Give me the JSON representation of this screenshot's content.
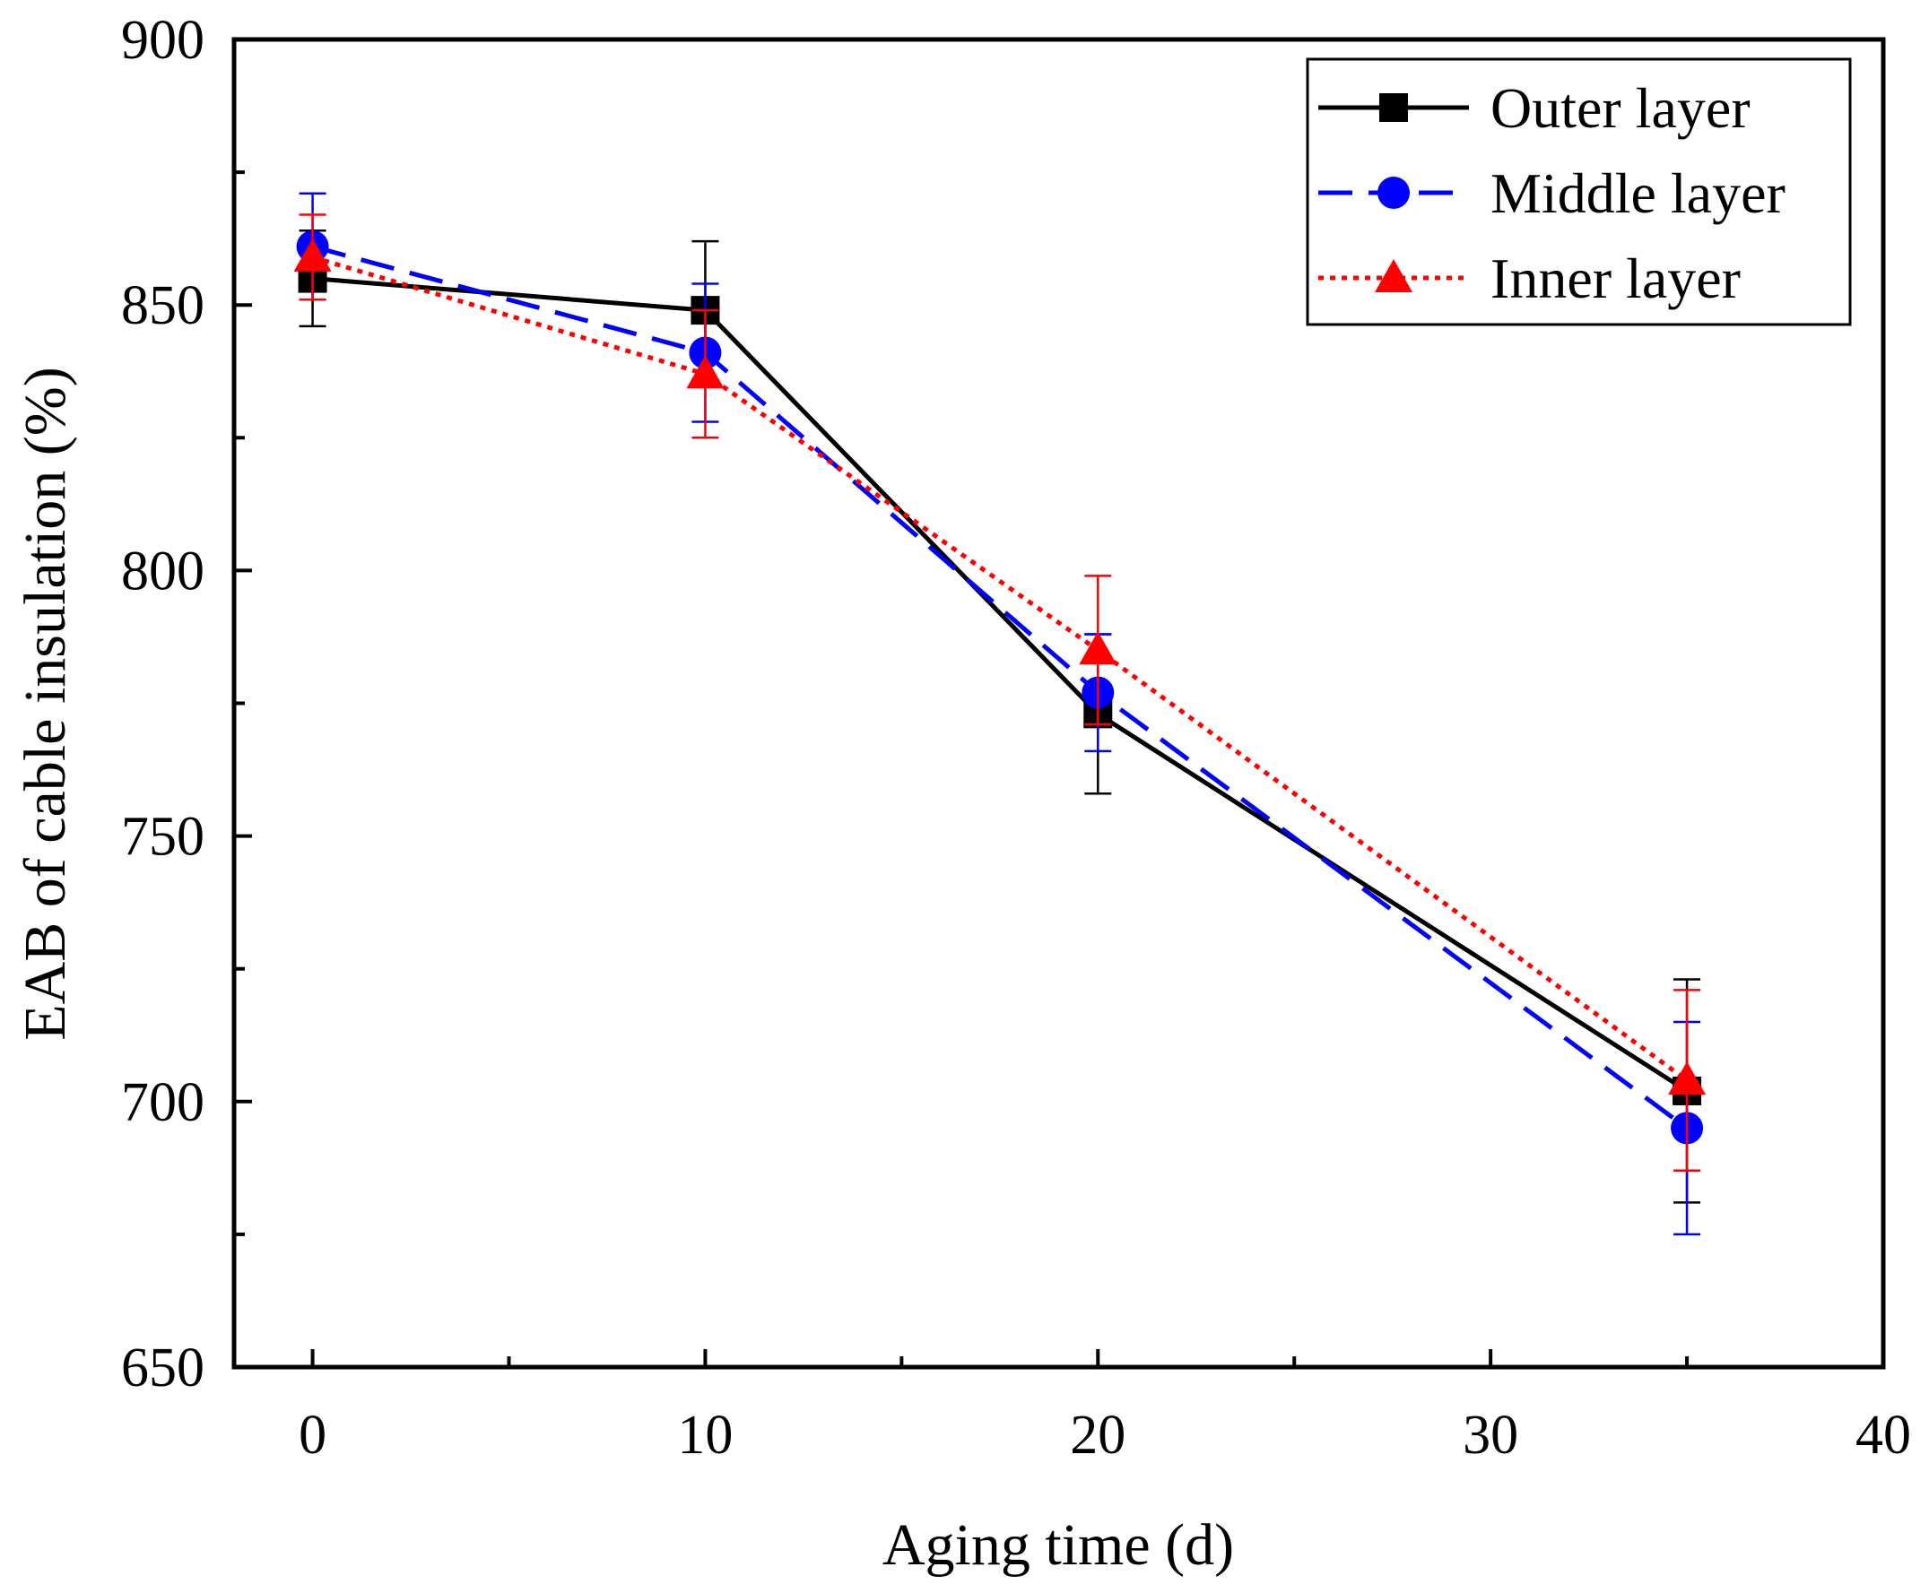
{
  "chart_data": {
    "type": "line",
    "title": "",
    "xlabel": "Aging time (d)",
    "ylabel": "EAB of cable insulation (%)",
    "xlim": [
      -2,
      40
    ],
    "ylim": [
      650,
      900
    ],
    "xticks": [
      0,
      10,
      20,
      30,
      40
    ],
    "yticks": [
      650,
      700,
      750,
      800,
      850,
      900
    ],
    "x_minor_step": 5,
    "y_minor_step": 25,
    "grid": false,
    "legend_position": "top-right",
    "series": [
      {
        "name": "Outer layer",
        "color": "#000000",
        "line_style": "solid",
        "marker": "square",
        "x": [
          0,
          10,
          20,
          35
        ],
        "values": [
          855,
          849,
          773,
          702
        ],
        "error": [
          9,
          13,
          15,
          21
        ]
      },
      {
        "name": "Middle layer",
        "color": "#0000ff",
        "line_style": "dashed",
        "marker": "circle",
        "x": [
          0,
          10,
          20,
          35
        ],
        "values": [
          861,
          841,
          777,
          695
        ],
        "error": [
          10,
          13,
          11,
          20
        ]
      },
      {
        "name": "Inner layer",
        "color": "#ff0000",
        "line_style": "dotted",
        "marker": "triangle",
        "x": [
          0,
          10,
          20,
          35
        ],
        "values": [
          859,
          837,
          785,
          704
        ],
        "error": [
          8,
          12,
          14,
          17
        ]
      }
    ]
  }
}
